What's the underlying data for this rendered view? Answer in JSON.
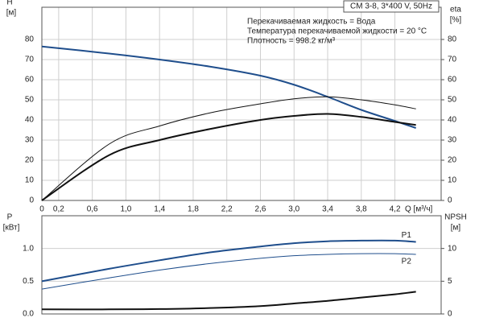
{
  "chart_data": [
    {
      "type": "line",
      "title": "CM 3-8, 3*400 V, 50Hz",
      "annotations": [
        "Перекачиваемая жидкость = Вода",
        "Температура перекачиваемой жидкости = 20 °C",
        "Плотность = 998.2 кг/м³"
      ],
      "y_label": "H",
      "y_unit": "[м]",
      "y2_label": "eta",
      "y2_unit": "[%]",
      "x_label": "Q [м³/ч]",
      "xlim": [
        0,
        4.75
      ],
      "xticks": [
        0,
        {
          "value": 0.2,
          "label": "0,2"
        },
        {
          "value": 0.6,
          "label": "0,6"
        },
        {
          "value": 1.0,
          "label": "1,0"
        },
        {
          "value": 1.4,
          "label": "1,4"
        },
        {
          "value": 1.8,
          "label": "1,8"
        },
        {
          "value": 2.2,
          "label": "2,2"
        },
        {
          "value": 2.6,
          "label": "2,6"
        },
        {
          "value": 3.0,
          "label": "3,0"
        },
        {
          "value": 3.4,
          "label": "3,4"
        },
        {
          "value": 3.8,
          "label": "3,8"
        },
        {
          "value": 4.2,
          "label": "4,2"
        }
      ],
      "ylim": [
        0,
        96
      ],
      "yticks": [
        0,
        10,
        20,
        30,
        40,
        50,
        60,
        70,
        80
      ],
      "y2lim": [
        0,
        96
      ],
      "y2ticks": [
        0,
        10,
        20,
        30,
        40,
        50,
        60,
        70,
        80
      ],
      "grid": true,
      "x": [
        0,
        0.8,
        1.4,
        2.0,
        2.6,
        3.0,
        3.4,
        3.8,
        4.2,
        4.45
      ],
      "series": [
        {
          "color": "#1f4e8c",
          "style": "thick",
          "values": [
            76.5,
            73,
            70,
            66.5,
            62,
            57.5,
            51.5,
            45,
            39.5,
            36
          ]
        },
        {
          "color": "#111111",
          "style": "thin",
          "axis": "y2",
          "values": [
            0,
            28,
            37,
            43.5,
            48,
            50.5,
            51.5,
            50,
            47.5,
            45.5
          ]
        },
        {
          "color": "#111111",
          "style": "thick",
          "axis": "y2",
          "values": [
            0,
            22.5,
            30,
            35.5,
            40,
            42,
            43,
            41.5,
            39,
            37.5
          ]
        }
      ]
    },
    {
      "type": "line",
      "y_label": "P",
      "y_unit": "[кВт]",
      "y2_label": "NPSH",
      "y2_unit": "[м]",
      "xlim": [
        0,
        4.75
      ],
      "ylim": [
        0,
        1.5
      ],
      "yticks": [
        {
          "value": 0,
          "label": "0.0"
        },
        0.5,
        {
          "value": 1,
          "label": "1.0"
        }
      ],
      "y2lim": [
        0,
        15
      ],
      "y2ticks": [
        0,
        5,
        10
      ],
      "grid": true,
      "x": [
        0,
        0.8,
        1.4,
        2.0,
        2.6,
        3.0,
        3.4,
        3.8,
        4.2,
        4.45
      ],
      "series": [
        {
          "name": "P1",
          "color": "#1f4e8c",
          "style": "thick",
          "values": [
            0.5,
            0.69,
            0.82,
            0.94,
            1.03,
            1.08,
            1.11,
            1.12,
            1.12,
            1.1
          ]
        },
        {
          "name": "P2",
          "color": "#1f4e8c",
          "style": "thin",
          "values": [
            0.38,
            0.55,
            0.67,
            0.77,
            0.85,
            0.89,
            0.91,
            0.92,
            0.92,
            0.91
          ]
        },
        {
          "color": "#111111",
          "style": "thick",
          "axis": "y2",
          "values": [
            0.7,
            0.7,
            0.75,
            0.9,
            1.2,
            1.6,
            2.0,
            2.5,
            3.0,
            3.4
          ]
        }
      ]
    }
  ]
}
